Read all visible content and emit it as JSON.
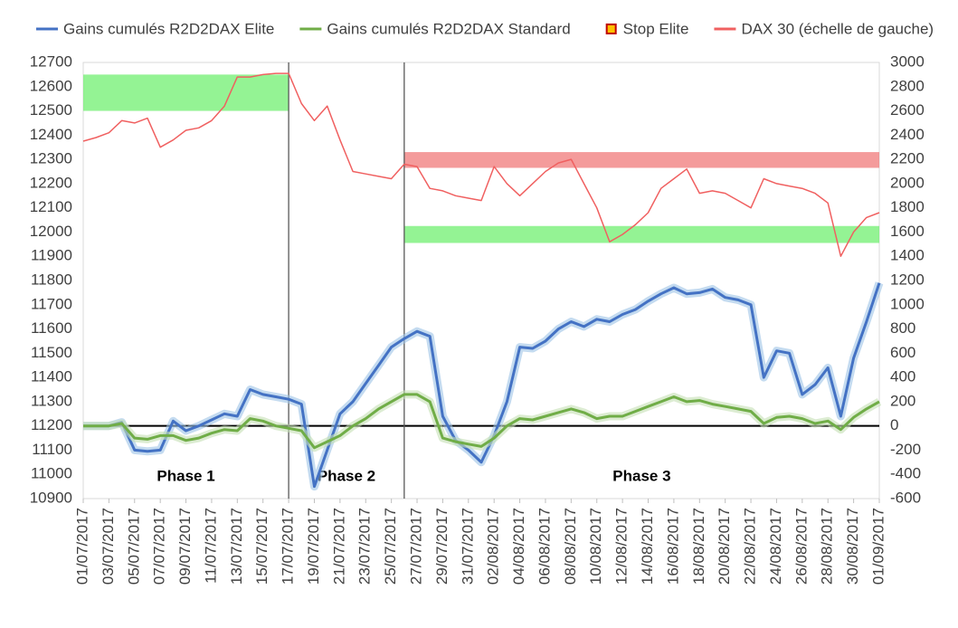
{
  "chart_data": {
    "type": "line",
    "x": [
      "01/07/2017",
      "02/07/2017",
      "03/07/2017",
      "04/07/2017",
      "05/07/2017",
      "06/07/2017",
      "07/07/2017",
      "08/07/2017",
      "09/07/2017",
      "10/07/2017",
      "11/07/2017",
      "12/07/2017",
      "13/07/2017",
      "14/07/2017",
      "15/07/2017",
      "16/07/2017",
      "17/07/2017",
      "18/07/2017",
      "19/07/2017",
      "20/07/2017",
      "21/07/2017",
      "22/07/2017",
      "23/07/2017",
      "24/07/2017",
      "25/07/2017",
      "26/07/2017",
      "27/07/2017",
      "28/07/2017",
      "29/07/2017",
      "30/07/2017",
      "31/07/2017",
      "01/08/2017",
      "02/08/2017",
      "03/08/2017",
      "04/08/2017",
      "05/08/2017",
      "06/08/2017",
      "07/08/2017",
      "08/08/2017",
      "09/08/2017",
      "10/08/2017",
      "11/08/2017",
      "12/08/2017",
      "13/08/2017",
      "14/08/2017",
      "15/08/2017",
      "16/08/2017",
      "17/08/2017",
      "18/08/2017",
      "19/08/2017",
      "20/08/2017",
      "21/08/2017",
      "22/08/2017",
      "23/08/2017",
      "24/08/2017",
      "25/08/2017",
      "26/08/2017",
      "27/08/2017",
      "28/08/2017",
      "29/08/2017",
      "30/08/2017",
      "31/08/2017",
      "01/09/2017"
    ],
    "series": [
      {
        "name": "Gains cumulés R2D2DAX Elite",
        "color": "#4472c4",
        "axis": "y2",
        "glow": "#9dc3e6",
        "values": [
          0,
          0,
          0,
          30,
          -200,
          -210,
          -200,
          40,
          -40,
          0,
          50,
          100,
          80,
          300,
          260,
          240,
          220,
          180,
          -500,
          -200,
          100,
          200,
          350,
          500,
          650,
          720,
          780,
          740,
          80,
          -120,
          -200,
          -300,
          -80,
          200,
          650,
          640,
          700,
          800,
          860,
          820,
          880,
          860,
          920,
          960,
          1030,
          1090,
          1140,
          1090,
          1100,
          1130,
          1060,
          1040,
          1000,
          400,
          620,
          600,
          260,
          340,
          480,
          80,
          560,
          860,
          1180
        ]
      },
      {
        "name": "Gains cumulés R2D2DAX Standard",
        "color": "#70ad47",
        "axis": "y2",
        "glow": "#c5e0b4",
        "values": [
          0,
          0,
          0,
          20,
          -100,
          -110,
          -80,
          -80,
          -120,
          -100,
          -60,
          -30,
          -40,
          60,
          40,
          0,
          -20,
          -40,
          -180,
          -130,
          -80,
          0,
          60,
          140,
          200,
          260,
          260,
          200,
          -100,
          -130,
          -150,
          -170,
          -100,
          0,
          60,
          50,
          80,
          110,
          140,
          110,
          60,
          80,
          80,
          120,
          160,
          200,
          240,
          200,
          210,
          180,
          160,
          140,
          120,
          20,
          70,
          80,
          60,
          20,
          40,
          -30,
          70,
          140,
          200
        ]
      },
      {
        "name": "Stop Elite",
        "color": "#c00000",
        "marker": "square",
        "marker_fill": "#ffc000",
        "values": [
          null,
          null,
          null,
          null,
          null,
          null,
          null,
          null,
          null,
          null,
          null,
          null,
          null,
          null,
          null,
          null,
          null,
          null,
          null,
          null,
          null,
          null,
          null,
          null,
          null,
          null,
          null,
          null,
          null,
          null,
          null,
          null,
          null,
          null,
          null,
          null,
          null,
          null,
          null,
          null,
          null,
          null,
          null,
          null,
          null,
          null,
          null,
          null,
          null,
          null,
          null,
          null,
          null,
          null,
          null,
          null,
          null,
          null,
          null,
          null,
          null,
          null,
          null
        ]
      },
      {
        "name": "DAX 30 (échelle de gauche)",
        "color": "#f06060",
        "axis": "y",
        "values": [
          12375,
          12390,
          12410,
          12460,
          12450,
          12470,
          12350,
          12380,
          12420,
          12430,
          12460,
          12520,
          12640,
          12640,
          12650,
          12655,
          12655,
          12530,
          12460,
          12520,
          12380,
          12250,
          12240,
          12230,
          12220,
          12280,
          12270,
          12180,
          12170,
          12150,
          12140,
          12130,
          12270,
          12200,
          12150,
          12200,
          12250,
          12285,
          12300,
          12200,
          12100,
          11960,
          11990,
          12030,
          12080,
          12180,
          12220,
          12260,
          12160,
          12170,
          12160,
          12130,
          12100,
          12220,
          12200,
          12190,
          12180,
          12160,
          12120,
          11900,
          12000,
          12060,
          12080
        ]
      }
    ],
    "bands": [
      {
        "from": "01/07/2017",
        "to": "17/07/2017",
        "low": 12500,
        "high": 12650,
        "color": "#66ee66"
      },
      {
        "from": "26/07/2017",
        "to": "01/09/2017",
        "low": 12265,
        "high": 12330,
        "color": "#f07070"
      },
      {
        "from": "26/07/2017",
        "to": "01/09/2017",
        "low": 11955,
        "high": 12025,
        "color": "#66ee66"
      }
    ],
    "dividers": [
      "17/07/2017",
      "26/07/2017"
    ],
    "phases": [
      "Phase 1",
      "Phase 2",
      "Phase 3"
    ],
    "ylim": [
      10900,
      12700
    ],
    "yticks": [
      10900,
      11000,
      11100,
      11200,
      11300,
      11400,
      11500,
      11600,
      11700,
      11800,
      11900,
      12000,
      12100,
      12200,
      12300,
      12400,
      12500,
      12600,
      12700
    ],
    "y2lim": [
      -600,
      3000
    ],
    "y2ticks": [
      -600,
      -400,
      -200,
      0,
      200,
      400,
      600,
      800,
      1000,
      1200,
      1400,
      1600,
      1800,
      2000,
      2200,
      2400,
      2600,
      2800,
      3000
    ],
    "grid": false,
    "legend": "top"
  }
}
